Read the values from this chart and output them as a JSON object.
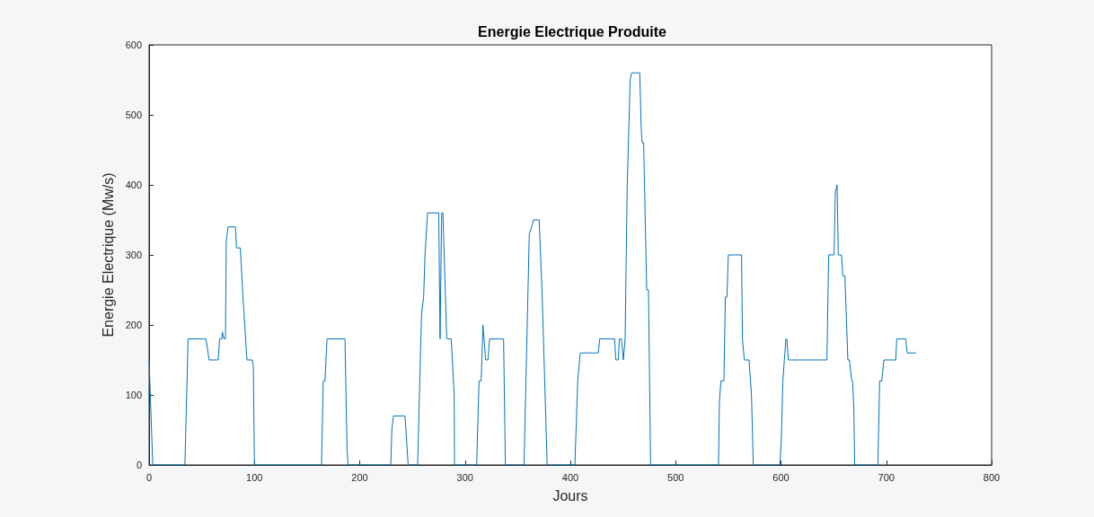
{
  "chart_data": {
    "type": "line",
    "title": "Energie Electrique Produite",
    "xlabel": "Jours",
    "ylabel": "Energie Electrique (Mw/s)",
    "xlim": [
      0,
      800
    ],
    "xticks": [
      0,
      100,
      200,
      300,
      400,
      500,
      600,
      700,
      800
    ],
    "ylim": [
      0,
      600
    ],
    "yticks": [
      0,
      100,
      200,
      300,
      400,
      500,
      600
    ],
    "marker": "none",
    "line_style": "solid",
    "series": [
      {
        "color": "#0072bd",
        "x": [
          0,
          3.5,
          34,
          37,
          54,
          57,
          65.6,
          67,
          69,
          69.6,
          71,
          72.5,
          73.3,
          75,
          82,
          83,
          86.6,
          89.5,
          90,
          92.9,
          98,
          99,
          100,
          163.7,
          165.4,
          167,
          169,
          186,
          188,
          189,
          229.5,
          230.5,
          232,
          243,
          246,
          255,
          257,
          258.7,
          260.7,
          262,
          264.4,
          275,
          276.3,
          277.8,
          279,
          282.6,
          286.9,
          289.7,
          290,
          311,
          313.3,
          315.3,
          317,
          319.6,
          321.8,
          323.3,
          336.6,
          338.3,
          356,
          361,
          363.3,
          365,
          370.4,
          373.3,
          378,
          404.3,
          407,
          409.4,
          426.5,
          427.9,
          442,
          443.2,
          445.5,
          446.6,
          448.6,
          450.3,
          452,
          454,
          456.8,
          458.2,
          465.9,
          467.3,
          468.2,
          469.6,
          472.5,
          474.2,
          476.2,
          540.7,
          541.5,
          543,
          545.8,
          547.2,
          548.7,
          550,
          562.6,
          563.4,
          565.2,
          569.7,
          572,
          573.7,
          599,
          600.4,
          601.8,
          603.2,
          604.7,
          605.5,
          607,
          643.6,
          645.3,
          650.4,
          651.6,
          653.3,
          654.4,
          657.5,
          658.7,
          660.7,
          663.5,
          665,
          667.2,
          668,
          669.2,
          670,
          692,
          693.7,
          695.7,
          697.7,
          709,
          709.9,
          718.4,
          719.9,
          728.4
        ],
        "values": [
          150,
          0,
          0,
          180,
          180,
          150,
          150,
          180,
          180,
          190,
          180,
          180,
          320,
          340,
          340,
          310,
          310,
          230,
          220,
          150,
          150,
          140,
          0,
          0,
          120,
          120,
          180,
          180,
          20,
          0,
          0,
          50,
          70,
          70,
          0,
          0,
          120,
          215,
          240,
          300,
          360,
          360,
          180,
          360,
          360,
          180,
          180,
          100,
          0,
          0,
          120,
          120,
          200,
          150,
          150,
          180,
          180,
          0,
          0,
          330,
          340,
          350,
          350,
          240,
          0,
          0,
          120,
          160,
          160,
          180,
          180,
          150,
          150,
          180,
          180,
          150,
          180,
          400,
          550,
          560,
          560,
          480,
          460,
          460,
          250,
          250,
          0,
          0,
          90,
          120,
          120,
          240,
          240,
          300,
          300,
          180,
          150,
          150,
          100,
          0,
          0,
          40,
          120,
          150,
          180,
          180,
          150,
          150,
          300,
          300,
          390,
          400,
          300,
          300,
          270,
          270,
          150,
          150,
          120,
          120,
          80,
          0,
          0,
          120,
          120,
          150,
          150,
          180,
          180,
          160,
          160
        ]
      }
    ]
  }
}
